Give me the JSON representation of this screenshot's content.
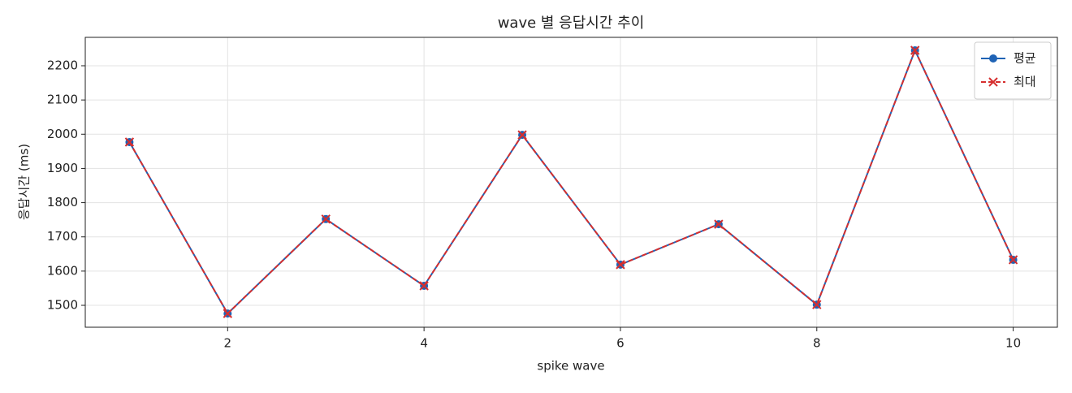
{
  "chart_data": {
    "type": "line",
    "title": "wave 별 응답시간 추이",
    "x_label": "spike wave",
    "y_label": "응답시간 (ms)",
    "x": [
      1,
      2,
      3,
      4,
      5,
      6,
      7,
      8,
      9,
      10
    ],
    "series": [
      {
        "name": "평균",
        "color": "#1f63b5",
        "marker": "circle",
        "dash": false,
        "values": [
          1977,
          1476,
          1752,
          1557,
          1998,
          1619,
          1737,
          1502,
          2245,
          1633
        ]
      },
      {
        "name": "최대",
        "color": "#d62f2f",
        "marker": "x",
        "dash": true,
        "values": [
          1977,
          1476,
          1752,
          1557,
          1998,
          1619,
          1737,
          1502,
          2245,
          1633
        ]
      }
    ],
    "xlim": [
      0.55,
      10.45
    ],
    "ylim": [
      1436,
      2283
    ],
    "xticks": [
      2,
      4,
      6,
      8,
      10
    ],
    "yticks": [
      1500,
      1600,
      1700,
      1800,
      1900,
      2000,
      2100,
      2200
    ],
    "grid": true,
    "legend": "upper-right"
  }
}
